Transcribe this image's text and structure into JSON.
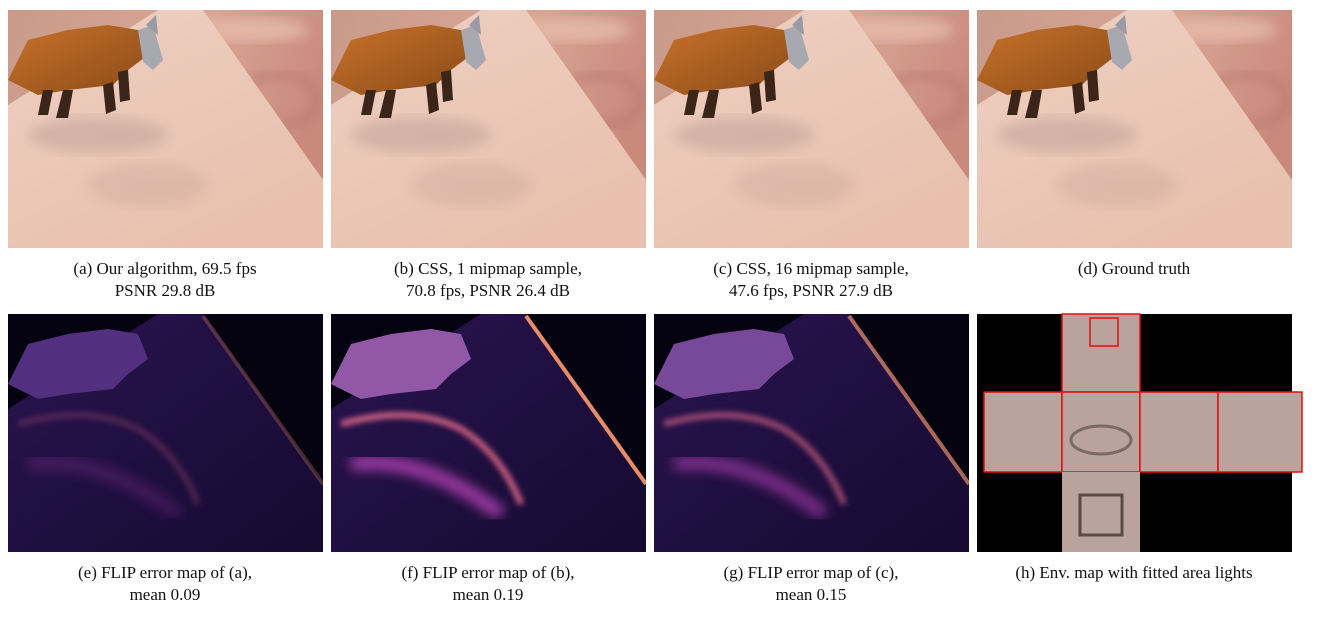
{
  "panels": [
    {
      "caption": [
        "(a) Our algorithm, 69.5 fps",
        "PSNR 29.8 dB"
      ]
    },
    {
      "caption": [
        "(b) CSS, 1 mipmap sample,",
        "70.8 fps, PSNR 26.4 dB"
      ]
    },
    {
      "caption": [
        "(c) CSS, 16 mipmap sample,",
        "47.6 fps, PSNR 27.9 dB"
      ]
    },
    {
      "caption": [
        "(d) Ground truth"
      ]
    },
    {
      "caption": [
        "(e) FLIP error map of (a),",
        "mean 0.09"
      ]
    },
    {
      "caption": [
        "(f) FLIP error map of (b),",
        "mean 0.19"
      ]
    },
    {
      "caption": [
        "(g) FLIP error map of (c),",
        "mean 0.15"
      ]
    },
    {
      "caption": [
        "(h) Env. map with fitted area lights"
      ]
    }
  ]
}
